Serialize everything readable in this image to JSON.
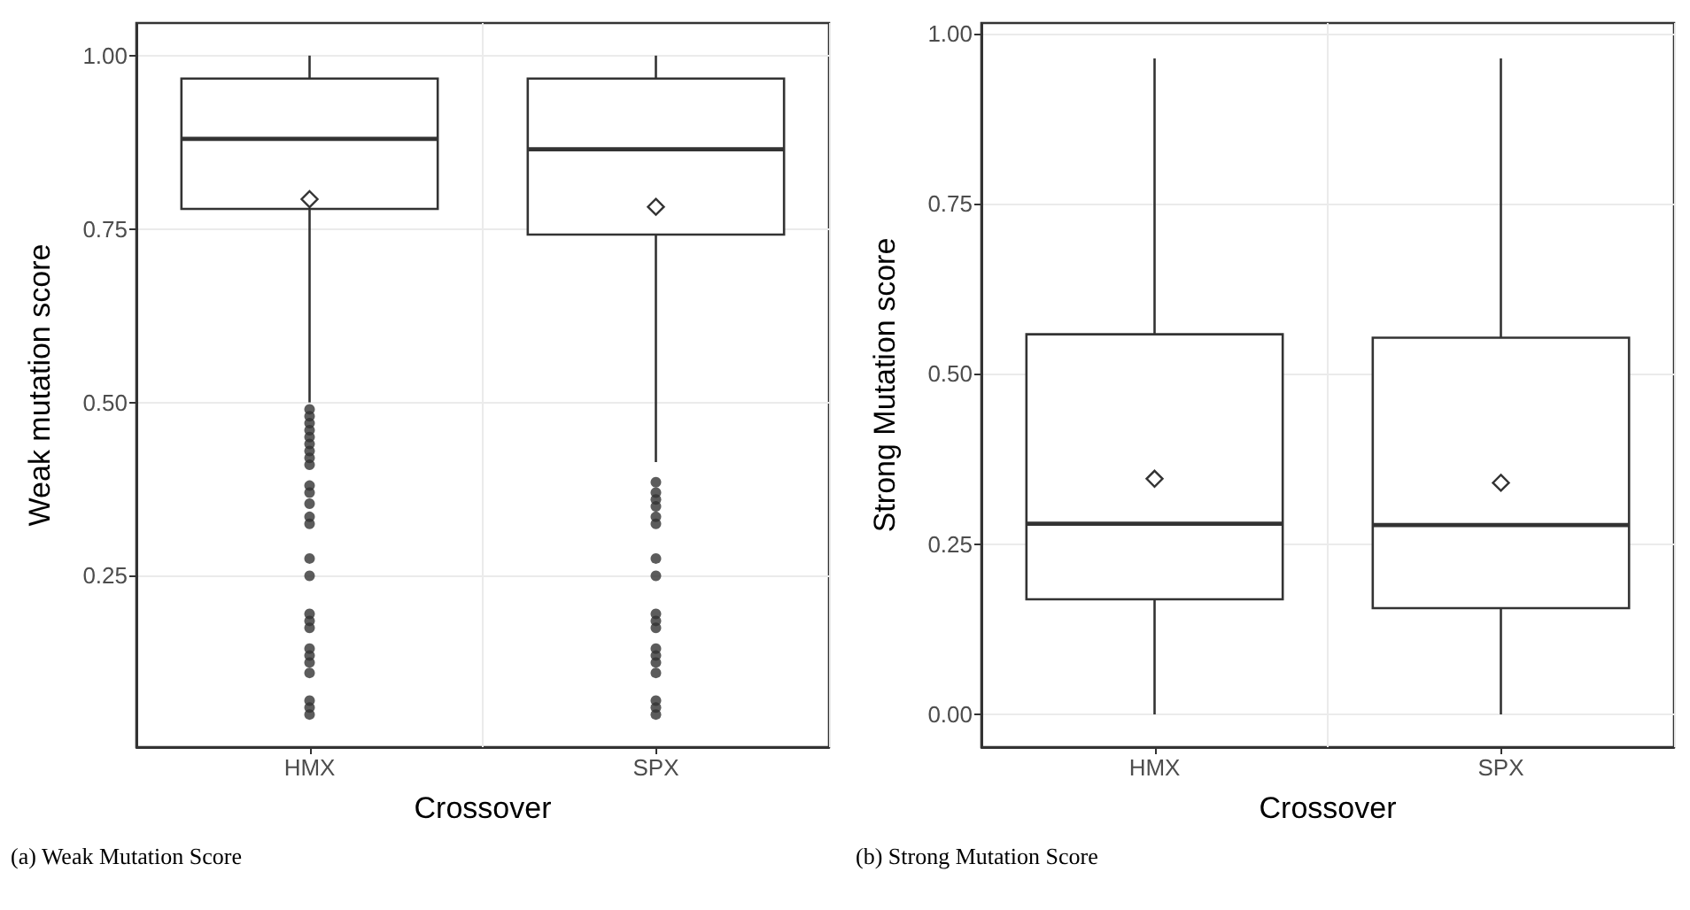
{
  "chart_data": [
    {
      "type": "box",
      "categories": [
        "HMX",
        "SPX"
      ],
      "xlabel": "Crossover",
      "ylabel": "Weak mutation score",
      "ylim": [
        0.003,
        1.047
      ],
      "yticks": [
        {
          "value": 0.25,
          "label": "0.25"
        },
        {
          "value": 0.5,
          "label": "0.50"
        },
        {
          "value": 0.75,
          "label": "0.75"
        },
        {
          "value": 1,
          "label": "1.00"
        }
      ],
      "grid": true,
      "annotations": [
        "(a) Weak Mutation Score"
      ],
      "series": [
        {
          "color": "#333333",
          "boxes": [
            {
              "low": 0.5,
              "q1": 0.779,
              "median": 0.88,
              "q3": 0.967,
              "high": 1.0,
              "mean": 0.793,
              "outliers": [
                0.49,
                0.48,
                0.47,
                0.46,
                0.45,
                0.44,
                0.43,
                0.42,
                0.41,
                0.38,
                0.37,
                0.354,
                0.335,
                0.325,
                0.275,
                0.25,
                0.195,
                0.185,
                0.175,
                0.145,
                0.135,
                0.125,
                0.11,
                0.07,
                0.06,
                0.05
              ]
            },
            {
              "low": 0.414,
              "q1": 0.742,
              "median": 0.865,
              "q3": 0.967,
              "high": 1.0,
              "mean": 0.782,
              "outliers": [
                0.385,
                0.37,
                0.36,
                0.35,
                0.335,
                0.325,
                0.275,
                0.25,
                0.195,
                0.185,
                0.175,
                0.145,
                0.135,
                0.125,
                0.11,
                0.07,
                0.06,
                0.05
              ]
            }
          ]
        }
      ]
    },
    {
      "type": "box",
      "categories": [
        "HMX",
        "SPX"
      ],
      "xlabel": "Crossover",
      "ylabel": "Strong Mutation score",
      "ylim": [
        -0.048,
        1.015
      ],
      "yticks": [
        {
          "value": 0,
          "label": "0.00"
        },
        {
          "value": 0.25,
          "label": "0.25"
        },
        {
          "value": 0.5,
          "label": "0.50"
        },
        {
          "value": 0.75,
          "label": "0.75"
        },
        {
          "value": 1,
          "label": "1.00"
        }
      ],
      "grid": true,
      "annotations": [
        "(b) Strong Mutation Score"
      ],
      "series": [
        {
          "color": "#333333",
          "boxes": [
            {
              "low": 0,
              "q1": 0.169,
              "median": 0.28,
              "q3": 0.558,
              "high": 0.963,
              "mean": 0.346
            },
            {
              "low": 0,
              "q1": 0.156,
              "median": 0.278,
              "q3": 0.553,
              "high": 0.963,
              "mean": 0.34
            }
          ]
        }
      ]
    }
  ]
}
